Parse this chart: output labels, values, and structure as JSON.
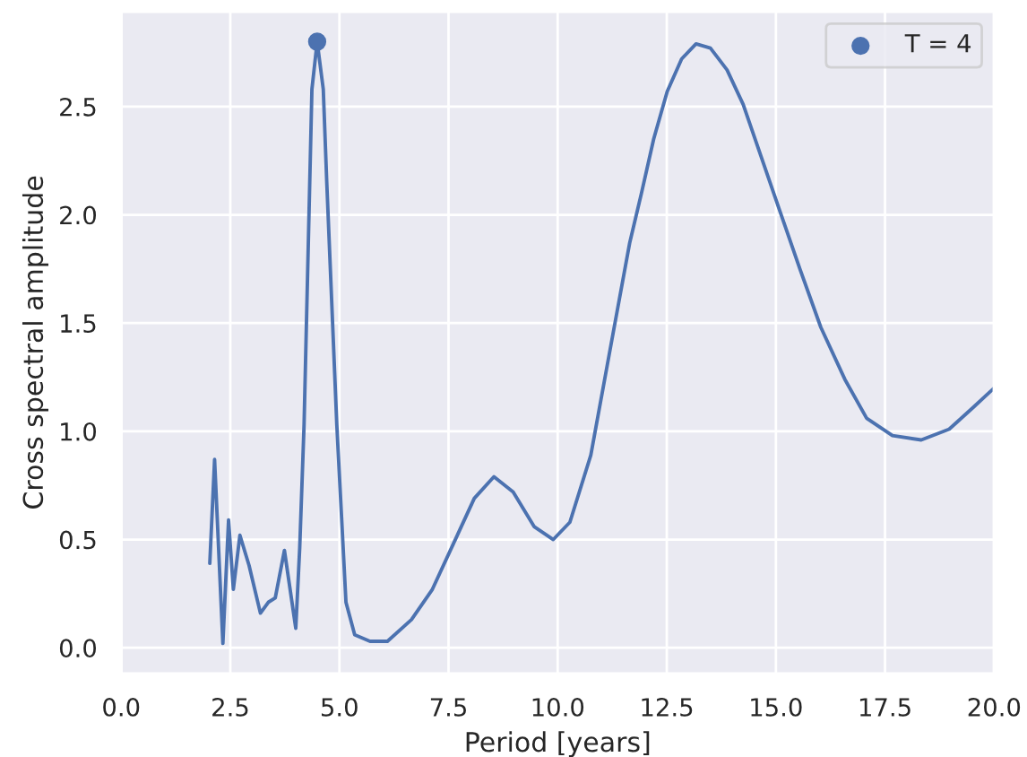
{
  "chart_data": {
    "type": "line",
    "xlabel": "Period [years]",
    "ylabel": "Cross spectral amplitude",
    "xlim": [
      0,
      20
    ],
    "ylim": [
      -0.12,
      2.94
    ],
    "xticks": [
      {
        "value": 0,
        "label": "0.0"
      },
      {
        "value": 2.5,
        "label": "2.5"
      },
      {
        "value": 5,
        "label": "5.0"
      },
      {
        "value": 7.5,
        "label": "7.5"
      },
      {
        "value": 10,
        "label": "10.0"
      },
      {
        "value": 12.5,
        "label": "12.5"
      },
      {
        "value": 15,
        "label": "15.0"
      },
      {
        "value": 17.5,
        "label": "17.5"
      },
      {
        "value": 20,
        "label": "20.0"
      }
    ],
    "yticks": [
      {
        "value": 0,
        "label": "0.0"
      },
      {
        "value": 0.5,
        "label": "0.5"
      },
      {
        "value": 1,
        "label": "1.0"
      },
      {
        "value": 1.5,
        "label": "1.5"
      },
      {
        "value": 2,
        "label": "2.0"
      },
      {
        "value": 2.5,
        "label": "2.5"
      }
    ],
    "grid": true,
    "legend": "top right",
    "series": [
      {
        "color": "#4c72b0",
        "x": [
          2.03,
          2.14,
          2.33,
          2.46,
          2.57,
          2.72,
          2.93,
          3.19,
          3.37,
          3.53,
          3.74,
          4.0,
          4.09,
          4.19,
          4.37,
          4.49,
          4.63,
          4.71,
          4.94,
          5.15,
          5.35,
          5.7,
          6.1,
          6.65,
          7.13,
          7.61,
          8.09,
          8.54,
          8.98,
          9.46,
          9.9,
          10.28,
          10.76,
          11.24,
          11.65,
          11.92,
          12.2,
          12.51,
          12.84,
          13.17,
          13.5,
          13.88,
          14.25,
          14.66,
          15.07,
          15.55,
          16.03,
          16.58,
          17.08,
          17.67,
          18.33,
          18.97,
          19.52,
          20.0
        ],
        "values": [
          0.39,
          0.87,
          0.02,
          0.59,
          0.27,
          0.52,
          0.38,
          0.16,
          0.21,
          0.23,
          0.45,
          0.09,
          0.46,
          1.03,
          2.58,
          2.8,
          2.58,
          2.15,
          1.03,
          0.21,
          0.06,
          0.03,
          0.03,
          0.13,
          0.27,
          0.48,
          0.69,
          0.79,
          0.72,
          0.56,
          0.5,
          0.58,
          0.89,
          1.42,
          1.87,
          2.1,
          2.35,
          2.57,
          2.72,
          2.79,
          2.77,
          2.67,
          2.51,
          2.27,
          2.03,
          1.75,
          1.48,
          1.24,
          1.06,
          0.98,
          0.96,
          1.01,
          1.11,
          1.2
        ]
      },
      {
        "type": "scatter",
        "name": "T = 4",
        "color": "#4c72b0",
        "marker": "circle",
        "x": [
          4.49
        ],
        "values": [
          2.8
        ]
      }
    ]
  }
}
